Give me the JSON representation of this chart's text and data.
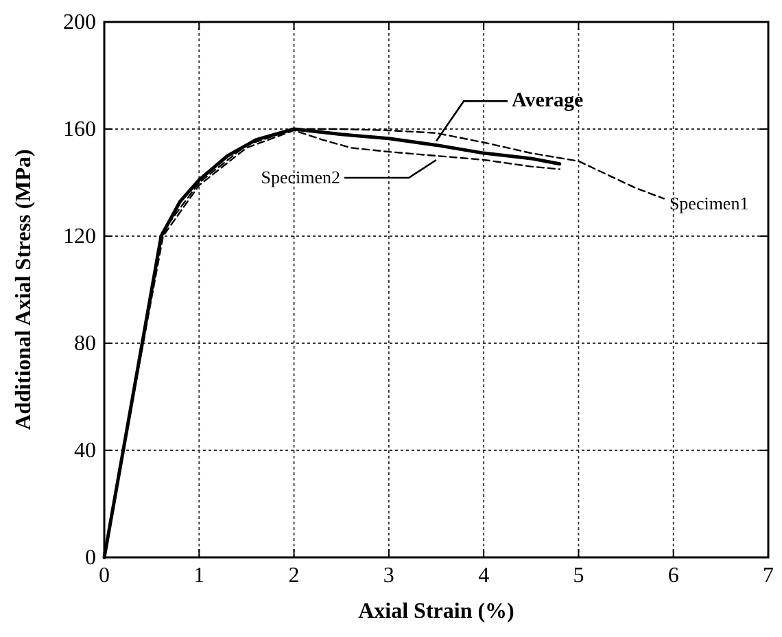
{
  "chart_data": {
    "type": "line",
    "xlabel": "Axial Strain (%)",
    "ylabel": "Additional Axial Stress (MPa)",
    "xlim": [
      0,
      7
    ],
    "xticks": [
      0,
      1,
      2,
      3,
      4,
      5,
      6,
      7
    ],
    "ylim": [
      0,
      200
    ],
    "yticks": [
      0,
      40,
      80,
      120,
      160,
      200
    ],
    "grid": true,
    "marker": "none",
    "series": [
      {
        "name": "Average",
        "color": "#000000",
        "line_style": "solid",
        "x": [
          0,
          0.3,
          0.6,
          0.8,
          1,
          1.3,
          1.6,
          2,
          2.5,
          3,
          3.5,
          4,
          4.5,
          4.8
        ],
        "values": [
          0,
          60,
          120,
          133,
          141,
          150,
          156,
          160,
          158,
          156.5,
          154,
          151,
          149,
          147
        ]
      },
      {
        "name": "Specimen1",
        "color": "#000000",
        "line_style": "dashed",
        "x": [
          0,
          0.3,
          0.6,
          1,
          1.5,
          2,
          2.5,
          3,
          3.5,
          4,
          4.5,
          5,
          5.3,
          5.6,
          5.9
        ],
        "values": [
          0,
          60,
          121,
          140,
          154,
          160,
          160,
          159.5,
          158.5,
          155,
          151,
          148,
          143,
          138,
          134
        ]
      },
      {
        "name": "Specimen2",
        "color": "#000000",
        "line_style": "dashed",
        "x": [
          0,
          0.3,
          0.62,
          1,
          1.5,
          2,
          2.3,
          2.6,
          3,
          3.5,
          4,
          4.5,
          4.8
        ],
        "values": [
          0,
          59,
          120,
          139,
          153,
          159.5,
          156,
          153,
          151.5,
          150,
          148.5,
          146,
          145
        ]
      }
    ]
  }
}
